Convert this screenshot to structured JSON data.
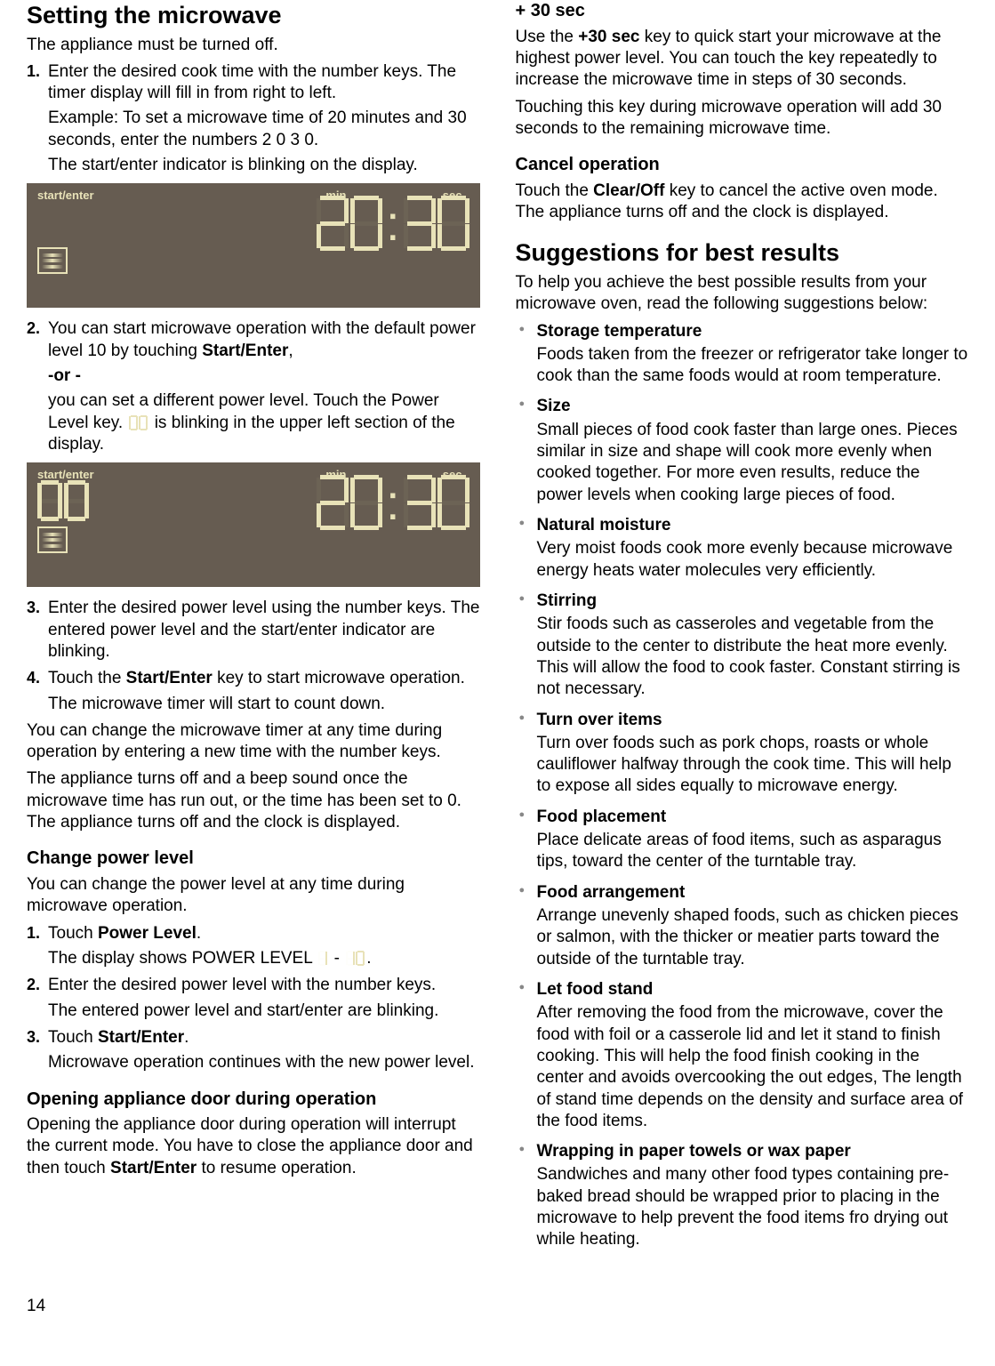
{
  "page_number": "14",
  "left": {
    "h1": "Setting the microwave",
    "intro": "The appliance must be turned off.",
    "steps1": [
      {
        "n": "1.",
        "lines": [
          "Enter the desired cook time with the number keys. The timer display will fill in from right to left.",
          "Example: To set a microwave time of 20 minutes and 30 seconds, enter the numbers 2 0 3 0.",
          "The start/enter indicator is blinking on the display."
        ]
      }
    ],
    "display1": {
      "start_enter": "start/enter",
      "min": "min",
      "sec": "sec",
      "time": [
        "2",
        "0",
        "3",
        "0"
      ],
      "colon": ":"
    },
    "steps2": [
      {
        "n": "2.",
        "lines": [
          "You can start microwave operation with the default power level 10 by touching <b>Start/Enter</b>,",
          "<b>-or -</b>",
          "you can set a different power level. Touch the Power Level key. <span class=\"inline-digits\" data-name=\"inline-00\"></span> is blinking in the upper left section of the display."
        ]
      }
    ],
    "display2": {
      "start_enter": "start/enter",
      "min": "min",
      "sec": "sec",
      "time": [
        "2",
        "0",
        "3",
        "0"
      ],
      "pl": [
        "0",
        "0"
      ],
      "colon": ":"
    },
    "steps3": [
      {
        "n": "3.",
        "lines": [
          "Enter the desired power level using the number keys. The entered power level and the start/enter indicator are blinking."
        ]
      },
      {
        "n": "4.",
        "lines": [
          "Touch the <b>Start/Enter</b> key to start microwave operation.",
          "The microwave timer will start to count down."
        ]
      }
    ],
    "after_steps": [
      "You can change the microwave timer at any time during operation by entering a new time with the number keys.",
      "The appliance turns off and a beep sound once the microwave time has run out, or the time has been set to 0. The appliance turns off and the clock is displayed."
    ],
    "h2a": "Change power level",
    "cpl_intro": "You can change the power level at any time during microwave operation.",
    "cpl_steps": [
      {
        "n": "1.",
        "lines": [
          "Touch <b>Power Level</b>.",
          "The display shows POWER LEVEL  <span class=\"inline-digits\" data-name=\"inline-1\"></span> -  <span class=\"inline-digits\" data-name=\"inline-10\"></span>."
        ]
      },
      {
        "n": "2.",
        "lines": [
          "Enter the desired power level with the number keys.",
          "The entered power level and start/enter are blinking."
        ]
      },
      {
        "n": "3.",
        "lines": [
          "Touch <b>Start/Enter</b>.",
          "Microwave operation continues with the new power level."
        ]
      }
    ],
    "h2b": "Opening appliance door during operation",
    "door": "Opening the appliance door during operation will interrupt the current mode. You have to close the appliance door and then touch <b>Start/Enter</b> to resume operation."
  },
  "right": {
    "h2a": "+ 30 sec",
    "p30": [
      "Use the <b>+30 sec</b> key to quick start your microwave at the highest power level. You can touch the key repeatedly to increase the microwave time in steps of 30 seconds.",
      "Touching this key during microwave operation will add 30 seconds to the remaining microwave time."
    ],
    "h2b": "Cancel operation",
    "cancel": "Touch the <b>Clear/Off</b> key to cancel the active oven mode. The appliance turns off and the clock is displayed.",
    "h1": "Suggestions for best results",
    "sug_intro": "To help you achieve the best possible results from your microwave oven, read the following suggestions below:",
    "bullets": [
      {
        "t": "Storage temperature",
        "b": "Foods taken from the freezer or refrigerator take longer to cook than the same foods would at room temperature."
      },
      {
        "t": "Size",
        "b": "Small pieces of food cook faster than large ones. Pieces similar in size and shape will cook more evenly when cooked together. For more even results, reduce the power levels when cooking large pieces of food."
      },
      {
        "t": "Natural moisture",
        "b": "Very moist foods cook more evenly because microwave energy heats water molecules very efficiently."
      },
      {
        "t": "Stirring",
        "b": "Stir foods such as casseroles and vegetable from the outside to the center to distribute the heat more evenly. This will allow the food to cook faster. Constant stirring is not necessary."
      },
      {
        "t": "Turn over items",
        "b": "Turn over foods such as pork chops, roasts or whole cauliflower halfway through the cook time. This will help to expose all sides equally to microwave energy."
      },
      {
        "t": "Food placement",
        "b": "Place delicate areas of food items, such as asparagus tips, toward the center of the turntable tray."
      },
      {
        "t": "Food arrangement",
        "b": "Arrange unevenly shaped foods, such as chicken pieces or salmon, with the thicker or meatier parts toward the outside of the turntable tray."
      },
      {
        "t": "Let food stand",
        "b": "After removing the food from the microwave, cover the food with foil or a casserole lid and let it stand to finish cooking. This will help the food finish cooking in the center and avoids overcooking the out edges, The length of stand time depends on the density and surface area of the food items."
      },
      {
        "t": "Wrapping in paper towels or wax paper",
        "b": "Sandwiches and many other food types containing pre-baked bread should be wrapped prior to placing in the microwave to help prevent the food items fro drying out while heating."
      }
    ]
  },
  "seg_map": {
    "0": [
      "a",
      "b",
      "c",
      "d",
      "e",
      "f"
    ],
    "1": [
      "b",
      "c"
    ],
    "2": [
      "a",
      "b",
      "g",
      "e",
      "d"
    ],
    "3": [
      "a",
      "b",
      "g",
      "c",
      "d"
    ],
    "4": [
      "f",
      "g",
      "b",
      "c"
    ],
    "5": [
      "a",
      "f",
      "g",
      "c",
      "d"
    ],
    "6": [
      "a",
      "f",
      "g",
      "e",
      "c",
      "d"
    ],
    "7": [
      "a",
      "b",
      "c"
    ],
    "8": [
      "a",
      "b",
      "c",
      "d",
      "e",
      "f",
      "g"
    ],
    "9": [
      "a",
      "b",
      "c",
      "d",
      "f",
      "g"
    ]
  },
  "colors": {
    "display_bg": "#665c51",
    "display_fg": "#e8e2b8"
  }
}
